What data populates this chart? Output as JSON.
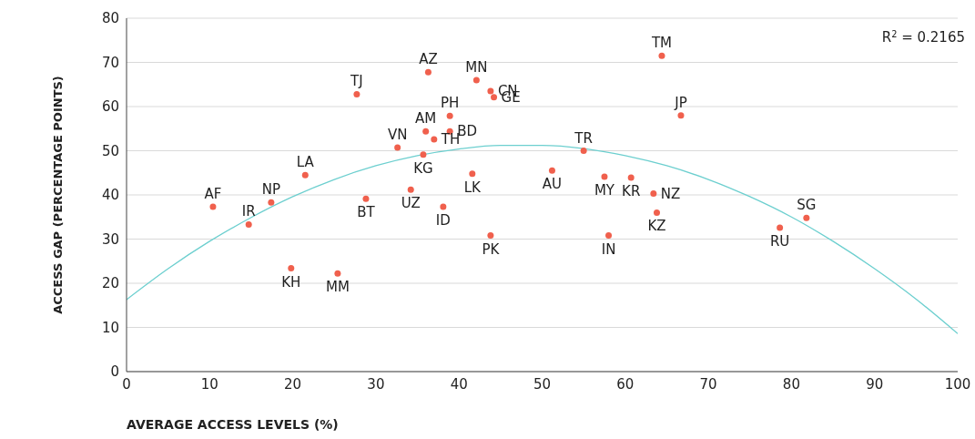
{
  "chart_data": {
    "type": "scatter",
    "xlabel": "AVERAGE ACCESS LEVELS (%)",
    "ylabel": "ACCESS GAP (PERCENTAGE POINTS)",
    "xlim": [
      0,
      100
    ],
    "xticks": [
      0,
      10,
      20,
      30,
      40,
      50,
      60,
      70,
      80,
      90,
      100
    ],
    "ylim": [
      0,
      80
    ],
    "yticks": [
      0,
      10,
      20,
      30,
      40,
      50,
      60,
      70,
      80
    ],
    "grid": "y",
    "marker": "circle",
    "annotations": [
      "R$^{2}$ = 0.2165"
    ],
    "series": [
      {
        "color": "#f0604d",
        "x": [
          10.4,
          14.7,
          17.4,
          21.5,
          19.8,
          25.4,
          28.8,
          32.6,
          34.2,
          35.7,
          41.6,
          38.1,
          43.8,
          27.7,
          36.3,
          42.1,
          43.8,
          44.2,
          38.9,
          36.0,
          38.9,
          37.0,
          51.2,
          64.4,
          66.7,
          55.0,
          57.5,
          60.7,
          63.4,
          63.8,
          58.0,
          78.6,
          81.8
        ],
        "values": [
          37.3,
          33.3,
          38.3,
          44.5,
          23.4,
          22.2,
          39.1,
          50.7,
          41.2,
          49.1,
          44.8,
          37.3,
          30.8,
          62.8,
          67.8,
          66.0,
          63.5,
          62.1,
          57.9,
          54.4,
          54.4,
          52.6,
          45.5,
          71.5,
          58.0,
          50.0,
          44.1,
          43.9,
          40.3,
          36.0,
          30.8,
          32.6,
          34.8
        ],
        "value_labels": [
          "AF",
          "IR",
          "NP",
          "LA",
          "KH",
          "MM",
          "BT",
          "VN",
          "UZ",
          "KG",
          "LK",
          "ID",
          "PK",
          "TJ",
          "AZ",
          "MN",
          "CN",
          "GE",
          "PH",
          "AM",
          "BD",
          "TH",
          "AU",
          "TM",
          "JP",
          "TR",
          "MY",
          "KR",
          "NZ",
          "KZ",
          "IN",
          "RU",
          "SG"
        ]
      },
      {
        "type": "line",
        "marker": "none",
        "color": "#6ccfcf",
        "x": [
          0,
          5,
          10,
          15,
          20,
          25,
          30,
          35,
          40,
          45,
          50,
          55,
          60,
          65,
          70,
          75,
          80,
          85,
          90,
          95,
          100
        ],
        "values": [
          16.3,
          23.3,
          29.5,
          34.9,
          39.6,
          43.5,
          46.6,
          48.9,
          50.4,
          51.2,
          51.2,
          50.5,
          48.9,
          46.6,
          43.5,
          39.6,
          35.0,
          29.5,
          23.3,
          16.4,
          8.6
        ]
      }
    ]
  }
}
